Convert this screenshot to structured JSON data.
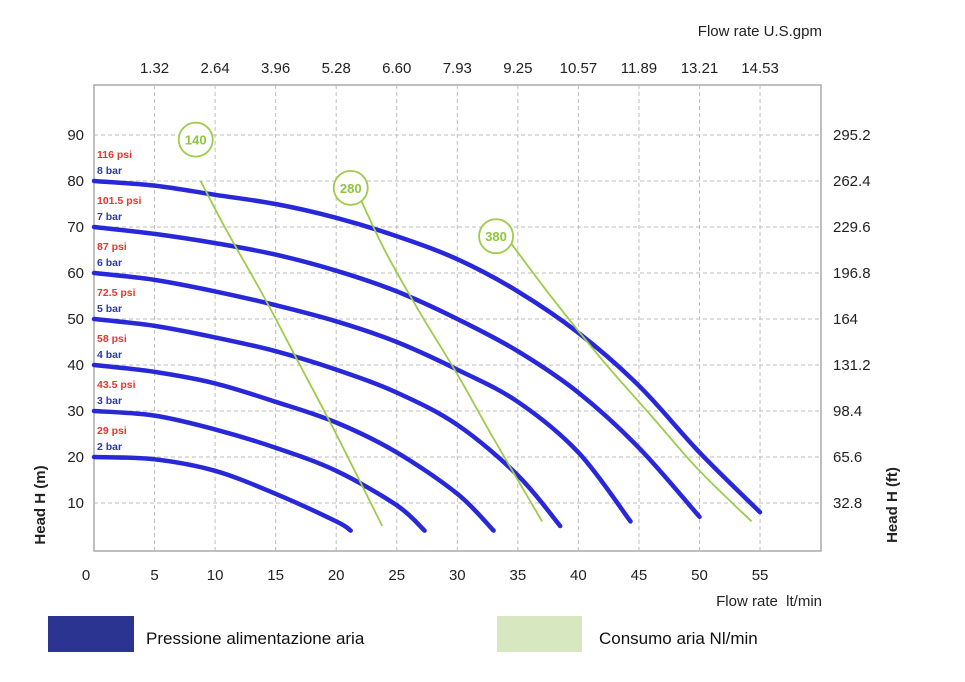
{
  "chart_data": {
    "type": "line",
    "title": "",
    "xlabel": "Flow rate  lt/min",
    "ylabel": "Head H (m)",
    "top_axis_label": "Flow rate U.S.gpm",
    "right_axis_label": "Head H (ft)",
    "xlim": [
      0,
      60
    ],
    "ylim": [
      0,
      100
    ],
    "x_ticks": [
      "0",
      "5",
      "10",
      "15",
      "20",
      "25",
      "30",
      "35",
      "40",
      "45",
      "50",
      "55"
    ],
    "y_ticks": [
      "10",
      "20",
      "30",
      "40",
      "50",
      "60",
      "70",
      "80",
      "90"
    ],
    "top_ticks": [
      "1.32",
      "2.64",
      "3.96",
      "5.28",
      "6.60",
      "7.93",
      "9.25",
      "10.57",
      "11.89",
      "13.21",
      "14.53"
    ],
    "right_ticks": [
      "32.8",
      "65.6",
      "98.4",
      "131.2",
      "164",
      "196.8",
      "229.6",
      "262.4",
      "295.2"
    ],
    "grid": true,
    "pressure_color": "#2828d8",
    "consumption_color": "#9ccc4a",
    "pressure_series": [
      {
        "bar": "2 bar",
        "psi": "29 psi",
        "points": [
          [
            0,
            20
          ],
          [
            5,
            19.5
          ],
          [
            10,
            17
          ],
          [
            15,
            12
          ],
          [
            20,
            6
          ],
          [
            21.2,
            4
          ]
        ]
      },
      {
        "bar": "3 bar",
        "psi": "43.5 psi",
        "points": [
          [
            0,
            30
          ],
          [
            5,
            29
          ],
          [
            10,
            26
          ],
          [
            15,
            22
          ],
          [
            20,
            17
          ],
          [
            25,
            9.5
          ],
          [
            27.3,
            4
          ]
        ]
      },
      {
        "bar": "4 bar",
        "psi": "58 psi",
        "points": [
          [
            0,
            40
          ],
          [
            5,
            38.5
          ],
          [
            10,
            36
          ],
          [
            15,
            32
          ],
          [
            20,
            27.5
          ],
          [
            25,
            21
          ],
          [
            30,
            12
          ],
          [
            33,
            4
          ]
        ]
      },
      {
        "bar": "5 bar",
        "psi": "72.5 psi",
        "points": [
          [
            0,
            50
          ],
          [
            5,
            48.5
          ],
          [
            10,
            46
          ],
          [
            15,
            43
          ],
          [
            20,
            39
          ],
          [
            25,
            34
          ],
          [
            30,
            27
          ],
          [
            35,
            16
          ],
          [
            38.5,
            5
          ]
        ]
      },
      {
        "bar": "6 bar",
        "psi": "87 psi",
        "points": [
          [
            0,
            60
          ],
          [
            5,
            58.5
          ],
          [
            10,
            56
          ],
          [
            15,
            53
          ],
          [
            20,
            49.5
          ],
          [
            25,
            45
          ],
          [
            30,
            39
          ],
          [
            35,
            32
          ],
          [
            40,
            21
          ],
          [
            44.3,
            6
          ]
        ]
      },
      {
        "bar": "7 bar",
        "psi": "101.5 psi",
        "points": [
          [
            0,
            70
          ],
          [
            5,
            68.5
          ],
          [
            10,
            66.5
          ],
          [
            15,
            64
          ],
          [
            20,
            60.5
          ],
          [
            25,
            56
          ],
          [
            30,
            50
          ],
          [
            35,
            43
          ],
          [
            40,
            34
          ],
          [
            45,
            22
          ],
          [
            50,
            7
          ]
        ]
      },
      {
        "bar": "8 bar",
        "psi": "116 psi",
        "points": [
          [
            0,
            80
          ],
          [
            5,
            79
          ],
          [
            10,
            77
          ],
          [
            15,
            75
          ],
          [
            20,
            72
          ],
          [
            25,
            68
          ],
          [
            30,
            63
          ],
          [
            35,
            56
          ],
          [
            40,
            47
          ],
          [
            45,
            35.5
          ],
          [
            50,
            21
          ],
          [
            55,
            8
          ]
        ]
      }
    ],
    "consumption_series": [
      {
        "name": "140",
        "points": [
          [
            8.8,
            80
          ],
          [
            11,
            69
          ],
          [
            14,
            55
          ],
          [
            17,
            40
          ],
          [
            20,
            25
          ],
          [
            23.8,
            5
          ]
        ]
      },
      {
        "name": "280",
        "points": [
          [
            21.5,
            79
          ],
          [
            24,
            65
          ],
          [
            27,
            51
          ],
          [
            30,
            38
          ],
          [
            33,
            24
          ],
          [
            37,
            6
          ]
        ]
      },
      {
        "name": "380",
        "points": [
          [
            34,
            68
          ],
          [
            38,
            54
          ],
          [
            42,
            41
          ],
          [
            46,
            29
          ],
          [
            50,
            17
          ],
          [
            54.3,
            6
          ]
        ]
      }
    ],
    "consumption_labels": [
      {
        "name": "140",
        "x": 8.4,
        "y": 89
      },
      {
        "name": "280",
        "x": 21.2,
        "y": 78.5
      },
      {
        "name": "380",
        "x": 33.2,
        "y": 68
      }
    ],
    "legend": [
      {
        "label": "Pressione alimentazione aria",
        "color": "#2b3591"
      },
      {
        "label": "Consumo aria Nl/min",
        "color": "#d7e7c0"
      }
    ]
  }
}
